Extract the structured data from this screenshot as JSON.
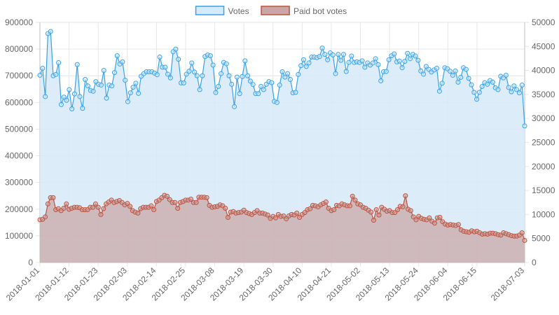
{
  "chart_data": {
    "type": "area",
    "title": "",
    "legend_position": "top-center",
    "grid": true,
    "series": [
      {
        "name": "Votes",
        "axis": "left",
        "color": "#36a2eb",
        "fill": "#d6eaf8",
        "values": [
          702000,
          728000,
          622000,
          858000,
          866000,
          700000,
          705000,
          749000,
          592000,
          620000,
          608000,
          648000,
          576000,
          632000,
          742000,
          622000,
          578000,
          686000,
          662000,
          645000,
          642000,
          678000,
          668000,
          665000,
          720000,
          616000,
          665000,
          662000,
          712000,
          775000,
          744000,
          752000,
          683000,
          603000,
          636000,
          657000,
          672000,
          634000,
          698000,
          708000,
          715000,
          715000,
          715000,
          710000,
          704000,
          770000,
          732000,
          732000,
          706000,
          692000,
          790000,
          800000,
          762000,
          673000,
          673000,
          706000,
          717000,
          748000,
          714000,
          700000,
          648000,
          700000,
          772000,
          778000,
          775000,
          740000,
          637000,
          660000,
          708000,
          750000,
          745000,
          700000,
          668000,
          584000,
          695000,
          633000,
          697000,
          756000,
          700000,
          680000,
          667000,
          633000,
          633000,
          660000,
          648000,
          668000,
          678000,
          674000,
          604000,
          600000,
          665000,
          715000,
          695000,
          708000,
          686000,
          636000,
          638000,
          705000,
          738000,
          760000,
          735000,
          748000,
          770000,
          770000,
          768000,
          772000,
          804000,
          780000,
          760000,
          786000,
          778000,
          708000,
          780000,
          758000,
          780000,
          716000,
          750000,
          774000,
          750000,
          752000,
          750000,
          756000,
          732000,
          748000,
          740000,
          748000,
          764000,
          742000,
          681000,
          715000,
          716000,
          760000,
          775000,
          782000,
          752000,
          755000,
          730000,
          754000,
          784000,
          764000,
          780000,
          774000,
          758000,
          718000,
          706000,
          735000,
          724000,
          714000,
          722000,
          728000,
          642000,
          672000,
          730000,
          726000,
          717000,
          702000,
          718000,
          676000,
          694000,
          730000,
          724000,
          690000,
          666000,
          638000,
          612000,
          638000,
          660000,
          674000,
          668000,
          682000,
          676000,
          655000,
          648000,
          698000,
          692000,
          702000,
          656000,
          640000,
          662000,
          648000,
          636000,
          665000,
          512000
        ]
      },
      {
        "name": "Paid bot votes",
        "axis": "right",
        "color": "#c0503a",
        "fill": "#c9a7a7",
        "values": [
          8900,
          9000,
          9500,
          12200,
          13500,
          13500,
          11000,
          11200,
          10800,
          11300,
          12200,
          11100,
          11300,
          11500,
          11500,
          11400,
          11000,
          11000,
          11000,
          11500,
          11500,
          12200,
          11500,
          10000,
          11200,
          12200,
          12600,
          13000,
          12500,
          12700,
          12900,
          12500,
          12000,
          12300,
          11700,
          10800,
          10500,
          10300,
          11200,
          11500,
          11500,
          11500,
          11800,
          11000,
          12700,
          13000,
          13500,
          14000,
          13800,
          13100,
          12500,
          12500,
          11300,
          12500,
          12700,
          13000,
          13000,
          13200,
          12500,
          12500,
          13600,
          13600,
          13600,
          13500,
          11900,
          11500,
          11600,
          11700,
          12000,
          11800,
          11300,
          9400,
          10500,
          10600,
          10300,
          10400,
          10500,
          10900,
          10400,
          10200,
          10000,
          10400,
          10800,
          10300,
          10300,
          10100,
          9900,
          9200,
          9600,
          9300,
          10000,
          9600,
          9700,
          9100,
          9700,
          10000,
          9900,
          10300,
          9400,
          10000,
          10400,
          11000,
          11200,
          11900,
          11800,
          11600,
          12000,
          12300,
          12600,
          11300,
          10800,
          11000,
          11900,
          11800,
          12200,
          12000,
          11800,
          11800,
          13800,
          13000,
          12200,
          12000,
          11500,
          11300,
          10900,
          10500,
          8800,
          11000,
          9900,
          11500,
          11100,
          10700,
          10800,
          10400,
          10400,
          11000,
          11700,
          11600,
          13900,
          11100,
          10800,
          9500,
          8900,
          9600,
          9200,
          9000,
          8900,
          9300,
          8600,
          8200,
          9300,
          9400,
          8500,
          8000,
          7800,
          7900,
          7800,
          7700,
          7900,
          6800,
          6500,
          6400,
          6300,
          6600,
          6400,
          6500,
          6200,
          5900,
          6000,
          5900,
          6100,
          6100,
          6000,
          5800,
          5700,
          6200,
          6000,
          5800,
          5600,
          5500,
          5500,
          5700,
          6200,
          4600
        ]
      }
    ],
    "x_start": "2018-01-01",
    "x_end": "2018-07-03",
    "x_tick_labels": [
      "2018-01-01",
      "2018-01-12",
      "2018-01-23",
      "2018-02-03",
      "2018-02-14",
      "2018-02-25",
      "2018-03-08",
      "2018-03-19",
      "2018-03-30",
      "2018-04-10",
      "2018-04-21",
      "2018-05-02",
      "2018-05-13",
      "2018-05-24",
      "2018-06-04",
      "2018-06-15",
      "2018-07-03"
    ],
    "left_axis": {
      "ylim": [
        0,
        900000
      ],
      "ticks": [
        "0",
        "100000",
        "200000",
        "300000",
        "400000",
        "500000",
        "600000",
        "700000",
        "800000",
        "900000"
      ]
    },
    "right_axis": {
      "ylim": [
        0,
        50000
      ],
      "ticks": [
        "0",
        "5000",
        "10000",
        "15000",
        "20000",
        "25000",
        "30000",
        "35000",
        "40000",
        "45000",
        "50000"
      ]
    }
  }
}
